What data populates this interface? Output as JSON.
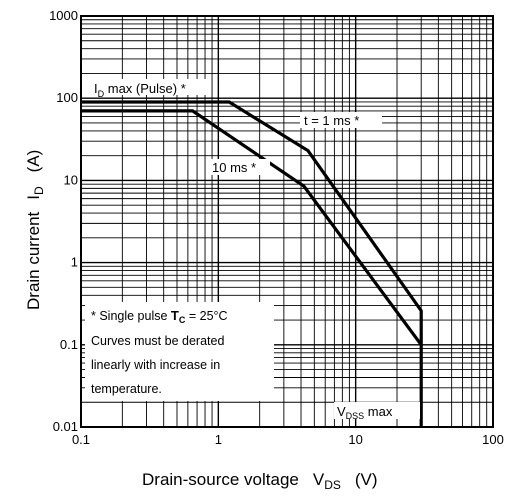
{
  "chart_data": {
    "type": "line",
    "title": "",
    "xlabel": "Drain-source voltage",
    "xlabel_symbol_main": "V",
    "xlabel_symbol_sub": "DS",
    "xlabel_unit": "(V)",
    "ylabel": "Drain current",
    "ylabel_symbol_main": "I",
    "ylabel_symbol_sub": "D",
    "ylabel_unit": "(A)",
    "xscale": "log",
    "yscale": "log",
    "xlim": [
      0.1,
      100
    ],
    "ylim": [
      0.01,
      1000
    ],
    "x_ticks": [
      "0.1",
      "1",
      "10",
      "100"
    ],
    "y_ticks": [
      "0.01",
      "0.1",
      "1",
      "10",
      "100",
      "1000"
    ],
    "grid": true,
    "series": [
      {
        "name": "t = 1 ms *",
        "points": [
          [
            0.1,
            90
          ],
          [
            1.2,
            90
          ],
          [
            4.5,
            23
          ],
          [
            30,
            0.26
          ],
          [
            30,
            0.01
          ]
        ]
      },
      {
        "name": "10 ms *",
        "points": [
          [
            0.1,
            70
          ],
          [
            0.65,
            70
          ],
          [
            4.2,
            8.5
          ],
          [
            30,
            0.1
          ]
        ]
      }
    ],
    "annotations": {
      "id_max": {
        "main": "I",
        "sub": "D",
        "rest": " max (Pulse) *"
      },
      "vdss_max": {
        "main": "V",
        "sub": "DSS",
        "rest": " max"
      },
      "t1ms": "t = 1 ms *",
      "t10ms": "10 ms *"
    },
    "note": {
      "line1_prefix": "* Single pulse ",
      "line1_tc_main": "T",
      "line1_tc_sub": "C",
      "line1_suffix": " = 25°C",
      "line2": "Curves must be derated",
      "line3": "linearly with increase in",
      "line4": "temperature."
    }
  }
}
